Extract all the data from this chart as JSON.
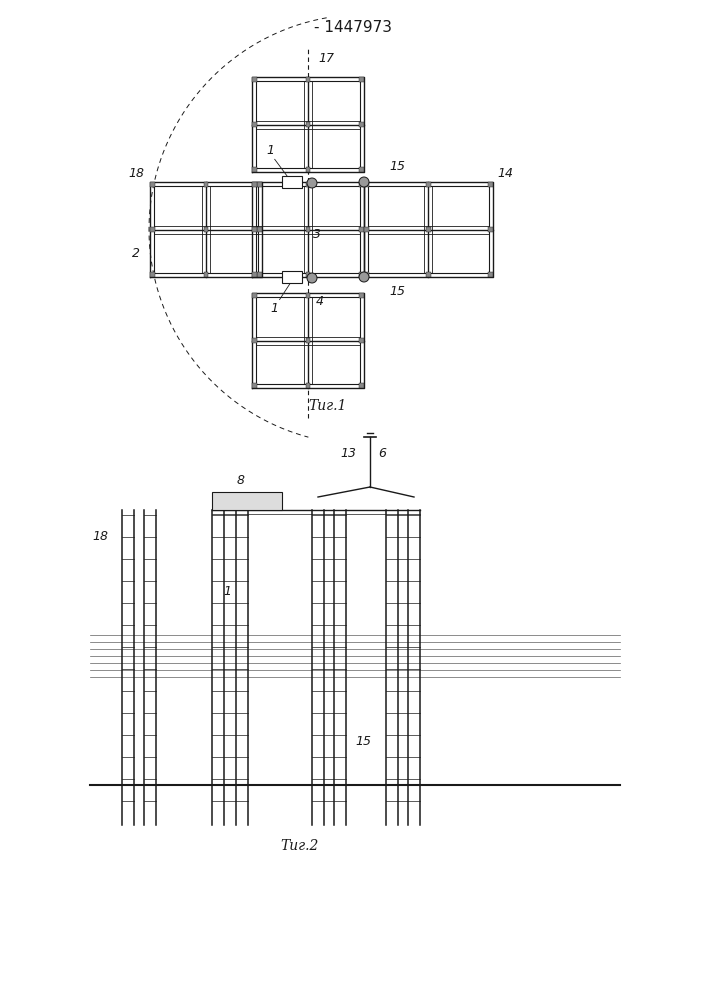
{
  "title": "- 1447973",
  "fig1_label": "Τиг.1",
  "fig2_label": "Τиг.2",
  "bg_color": "#ffffff",
  "lc": "#1a1a1a"
}
